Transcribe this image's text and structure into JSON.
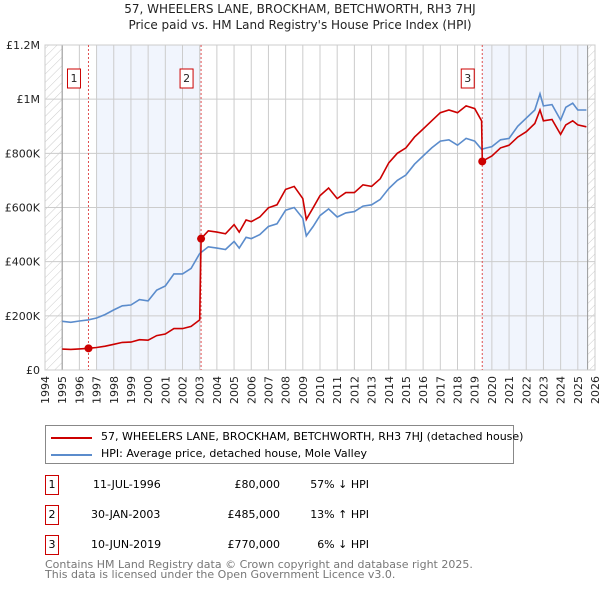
{
  "chart_data": {
    "type": "line",
    "title": "57, WHEELERS LANE, BROCKHAM, BETCHWORTH, RH3 7HJ",
    "subtitle": "Price paid vs. HM Land Registry's House Price Index (HPI)",
    "xlim": [
      1994,
      2026
    ],
    "ylim": [
      0,
      1200000
    ],
    "x_ticks": [
      "1994",
      "1995",
      "1996",
      "1997",
      "1998",
      "1999",
      "2000",
      "2001",
      "2002",
      "2003",
      "2004",
      "2005",
      "2006",
      "2007",
      "2008",
      "2009",
      "2010",
      "2011",
      "2012",
      "2013",
      "2014",
      "2015",
      "2016",
      "2017",
      "2018",
      "2019",
      "2020",
      "2021",
      "2022",
      "2023",
      "2024",
      "2025",
      "2026"
    ],
    "y_ticks": [
      {
        "v": 0,
        "label": "£0"
      },
      {
        "v": 200000,
        "label": "£200K"
      },
      {
        "v": 400000,
        "label": "£400K"
      },
      {
        "v": 600000,
        "label": "£600K"
      },
      {
        "v": 800000,
        "label": "£800K"
      },
      {
        "v": 1000000,
        "label": "£1M"
      },
      {
        "v": 1200000,
        "label": "£1.2M"
      }
    ],
    "grid": true,
    "shaded_ranges": [
      [
        1997.0,
        2003.08
      ],
      [
        2019.44,
        2025.57
      ]
    ],
    "hatched_ranges": [
      [
        1994,
        1995
      ],
      [
        2025.57,
        2026
      ]
    ],
    "series": [
      {
        "name": "57, WHEELERS LANE, BROCKHAM, BETCHWORTH, RH3 7HJ (detached house)",
        "color": "#cc0000",
        "x": [
          1995,
          1995.5,
          1996,
          1996.53,
          1997,
          1997.5,
          1998,
          1998.5,
          1999,
          1999.5,
          2000,
          2000.5,
          2001,
          2001.5,
          2002,
          2002.5,
          2003.0,
          2003.08,
          2003.5,
          2004,
          2004.5,
          2005,
          2005.3,
          2005.7,
          2006,
          2006.5,
          2007,
          2007.5,
          2008,
          2008.5,
          2009,
          2009.2,
          2009.6,
          2010,
          2010.5,
          2011,
          2011.5,
          2012,
          2012.5,
          2013,
          2013.5,
          2014,
          2014.5,
          2015,
          2015.5,
          2016,
          2016.5,
          2017,
          2017.5,
          2018,
          2018.5,
          2019,
          2019.4,
          2019.44,
          2019.7,
          2020,
          2020.5,
          2021,
          2021.5,
          2022,
          2022.5,
          2022.8,
          2023,
          2023.5,
          2024,
          2024.3,
          2024.7,
          2025,
          2025.5
        ],
        "y": [
          77000,
          76000,
          78000,
          80000,
          83000,
          88000,
          95000,
          102000,
          103000,
          112000,
          110000,
          127000,
          133000,
          153000,
          153000,
          161000,
          185000,
          485000,
          514000,
          509000,
          503000,
          537000,
          509000,
          554000,
          548000,
          565000,
          599000,
          610000,
          667000,
          678000,
          633000,
          556000,
          599000,
          644000,
          672000,
          633000,
          655000,
          655000,
          684000,
          678000,
          706000,
          765000,
          800000,
          820000,
          860000,
          890000,
          920000,
          950000,
          960000,
          950000,
          975000,
          965000,
          920000,
          770000,
          780000,
          790000,
          820000,
          830000,
          860000,
          880000,
          910000,
          960000,
          920000,
          925000,
          870000,
          905000,
          920000,
          905000,
          898000
        ]
      },
      {
        "name": "HPI: Average price, detached house, Mole Valley",
        "color": "#5b8ccc",
        "x": [
          1995,
          1995.5,
          1996,
          1996.5,
          1997,
          1997.5,
          1998,
          1998.5,
          1999,
          1999.5,
          2000,
          2000.5,
          2001,
          2001.5,
          2002,
          2002.5,
          2003,
          2003.5,
          2004,
          2004.5,
          2005,
          2005.3,
          2005.7,
          2006,
          2006.5,
          2007,
          2007.5,
          2008,
          2008.5,
          2009,
          2009.2,
          2009.6,
          2010,
          2010.5,
          2011,
          2011.5,
          2012,
          2012.5,
          2013,
          2013.5,
          2014,
          2014.5,
          2015,
          2015.5,
          2016,
          2016.5,
          2017,
          2017.5,
          2018,
          2018.5,
          2019,
          2019.4,
          2019.7,
          2020,
          2020.5,
          2021,
          2021.5,
          2022,
          2022.5,
          2022.8,
          2023,
          2023.5,
          2024,
          2024.3,
          2024.7,
          2025,
          2025.5
        ],
        "y": [
          180000,
          176000,
          181000,
          185000,
          192000,
          205000,
          222000,
          237000,
          240000,
          260000,
          255000,
          295000,
          310000,
          355000,
          355000,
          375000,
          430000,
          455000,
          450000,
          445000,
          475000,
          450000,
          490000,
          485000,
          500000,
          530000,
          540000,
          590000,
          600000,
          560000,
          495000,
          530000,
          570000,
          595000,
          565000,
          580000,
          585000,
          605000,
          610000,
          630000,
          670000,
          700000,
          720000,
          760000,
          790000,
          820000,
          845000,
          850000,
          830000,
          855000,
          845000,
          815000,
          820000,
          825000,
          850000,
          855000,
          900000,
          930000,
          960000,
          1020000,
          975000,
          980000,
          923000,
          970000,
          985000,
          960000,
          960000
        ]
      }
    ],
    "sales": [
      {
        "label": "1",
        "x": 1996.53,
        "y": 80000
      },
      {
        "label": "2",
        "x": 2003.08,
        "y": 485000
      },
      {
        "label": "3",
        "x": 2019.44,
        "y": 770000
      }
    ],
    "legend_placement": "below"
  },
  "table": [
    {
      "num": "1",
      "date": "11-JUL-1996",
      "price": "£80,000",
      "hpi": "57% ↓ HPI"
    },
    {
      "num": "2",
      "date": "30-JAN-2003",
      "price": "£485,000",
      "hpi": "13% ↑ HPI"
    },
    {
      "num": "3",
      "date": "10-JUN-2019",
      "price": "£770,000",
      "hpi": "6% ↓ HPI"
    }
  ],
  "footer": {
    "line1": "Contains HM Land Registry data © Crown copyright and database right 2025.",
    "line2": "This data is licensed under the Open Government Licence v3.0."
  }
}
